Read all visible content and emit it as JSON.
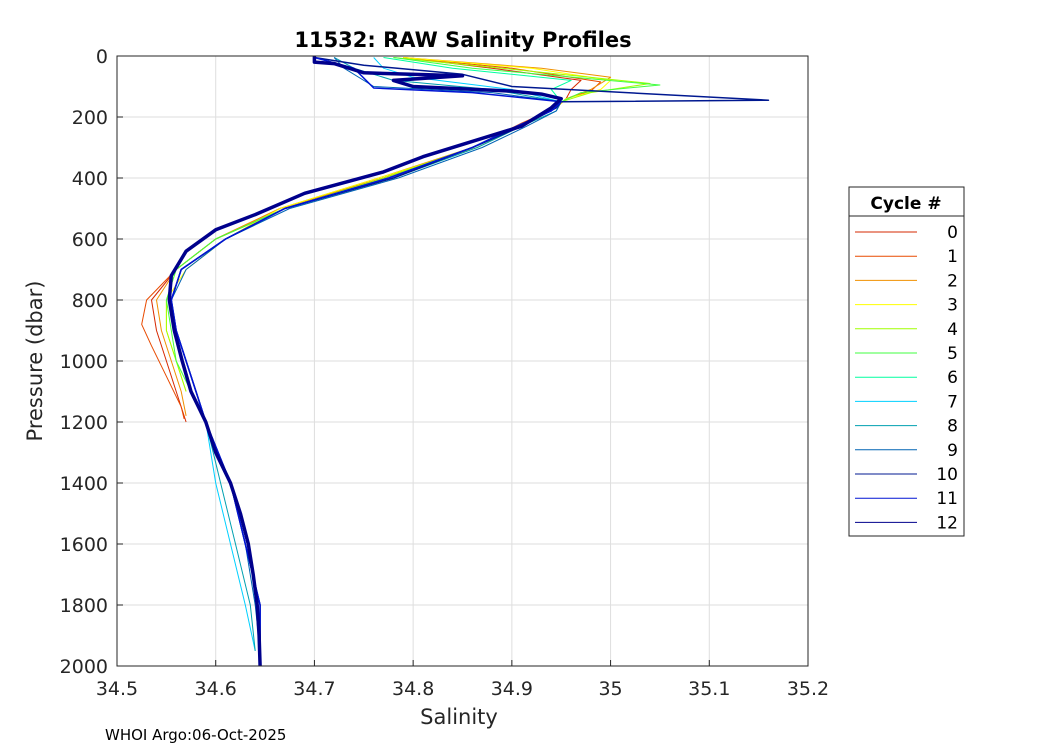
{
  "footer": {
    "text": "WHOI Argo:06-Oct-2025"
  },
  "chart_data": {
    "type": "line",
    "title": "11532: RAW Salinity Profiles",
    "xlabel": "Salinity",
    "ylabel": "Pressure (dbar)",
    "xlim": [
      34.5,
      35.2
    ],
    "ylim": [
      0,
      2000
    ],
    "y_reversed": true,
    "grid": true,
    "xticks": [
      34.5,
      34.6,
      34.7,
      34.8,
      34.9,
      35,
      35.1,
      35.2
    ],
    "xtick_labels": [
      "34.5",
      "34.6",
      "34.7",
      "34.8",
      "34.9",
      "35",
      "35.1",
      "35.2"
    ],
    "yticks": [
      0,
      200,
      400,
      600,
      800,
      1000,
      1200,
      1400,
      1600,
      1800,
      2000
    ],
    "ytick_labels": [
      "0",
      "200",
      "400",
      "600",
      "800",
      "1000",
      "1200",
      "1400",
      "1600",
      "1800",
      "2000"
    ],
    "legend": {
      "title": "Cycle #",
      "placement": "right-outside"
    },
    "series": [
      {
        "name": "0",
        "color": "#d62800",
        "width": 1,
        "pressure": [
          5,
          40,
          80,
          110,
          140,
          170,
          220,
          300,
          400,
          500,
          600,
          700,
          800,
          900,
          1000,
          1100,
          1200
        ],
        "salinity": [
          34.79,
          34.88,
          34.97,
          34.96,
          34.955,
          34.945,
          34.915,
          34.86,
          34.77,
          34.67,
          34.6,
          34.56,
          34.535,
          34.54,
          34.55,
          34.56,
          34.57
        ]
      },
      {
        "name": "1",
        "color": "#e84a00",
        "width": 1,
        "pressure": [
          5,
          40,
          85,
          115,
          140,
          170,
          220,
          300,
          400,
          500,
          600,
          700,
          800,
          880,
          950,
          1050,
          1150,
          1190
        ],
        "salinity": [
          34.79,
          34.9,
          34.99,
          34.98,
          34.955,
          34.945,
          34.91,
          34.86,
          34.77,
          34.665,
          34.6,
          34.56,
          34.53,
          34.525,
          34.535,
          34.55,
          34.565,
          34.568
        ]
      },
      {
        "name": "2",
        "color": "#f09000",
        "width": 1,
        "pressure": [
          5,
          40,
          70,
          110,
          140,
          170,
          220,
          300,
          400,
          500,
          600,
          700,
          800,
          900,
          1000,
          1100,
          1180
        ],
        "salinity": [
          34.79,
          34.93,
          35.0,
          34.98,
          34.955,
          34.945,
          34.915,
          34.86,
          34.765,
          34.665,
          34.6,
          34.56,
          34.54,
          34.545,
          34.555,
          34.565,
          34.57
        ]
      },
      {
        "name": "3",
        "color": "#ffff00",
        "width": 1,
        "pressure": [
          5,
          40,
          80,
          110,
          140,
          170,
          220,
          300,
          400,
          500,
          600,
          700,
          800,
          900,
          1000,
          1100
        ],
        "salinity": [
          34.79,
          34.92,
          35.0,
          34.99,
          34.955,
          34.945,
          34.915,
          34.865,
          34.765,
          34.665,
          34.61,
          34.57,
          34.55,
          34.55,
          34.56,
          34.57
        ]
      },
      {
        "name": "4",
        "color": "#a0ff00",
        "width": 1,
        "pressure": [
          5,
          40,
          90,
          120,
          150,
          180,
          230,
          300,
          400,
          500,
          600,
          700,
          800,
          900,
          1000,
          1100
        ],
        "salinity": [
          34.78,
          34.89,
          35.04,
          34.98,
          34.95,
          34.94,
          34.905,
          34.86,
          34.77,
          34.67,
          34.6,
          34.56,
          34.55,
          34.55,
          34.56,
          34.57
        ]
      },
      {
        "name": "5",
        "color": "#40ff40",
        "width": 1,
        "pressure": [
          5,
          40,
          95,
          120,
          150,
          180,
          230,
          300,
          400,
          500,
          600,
          700,
          800,
          900,
          1000,
          1100
        ],
        "salinity": [
          34.78,
          34.86,
          35.05,
          34.97,
          34.95,
          34.94,
          34.905,
          34.86,
          34.775,
          34.67,
          34.6,
          34.56,
          34.55,
          34.555,
          34.56,
          34.575
        ]
      },
      {
        "name": "6",
        "color": "#00ffa0",
        "width": 1,
        "pressure": [
          5,
          40,
          80,
          110,
          150,
          180,
          230,
          300,
          400,
          500,
          600,
          700,
          800,
          900,
          1000,
          1100,
          1200
        ],
        "salinity": [
          34.77,
          34.84,
          34.96,
          34.94,
          34.95,
          34.94,
          34.905,
          34.86,
          34.775,
          34.67,
          34.61,
          34.565,
          34.555,
          34.56,
          34.57,
          34.58,
          34.59
        ]
      },
      {
        "name": "7",
        "color": "#00d0ff",
        "width": 1,
        "pressure": [
          5,
          40,
          70,
          110,
          150,
          180,
          230,
          300,
          400,
          500,
          600,
          700,
          800,
          900,
          1000,
          1100,
          1200,
          1400,
          1600,
          1800,
          1950
        ],
        "salinity": [
          34.76,
          34.77,
          34.8,
          34.9,
          34.95,
          34.94,
          34.905,
          34.86,
          34.78,
          34.67,
          34.61,
          34.565,
          34.555,
          34.56,
          34.57,
          34.58,
          34.59,
          34.6,
          34.615,
          34.63,
          34.64
        ]
      },
      {
        "name": "8",
        "color": "#00a0b0",
        "width": 1,
        "pressure": [
          5,
          40,
          80,
          110,
          150,
          180,
          230,
          300,
          400,
          500,
          600,
          700,
          800,
          900,
          1000,
          1100,
          1200,
          1400,
          1600,
          1800,
          1950
        ],
        "salinity": [
          34.72,
          34.74,
          34.78,
          34.88,
          34.95,
          34.945,
          34.91,
          34.865,
          34.78,
          34.67,
          34.61,
          34.565,
          34.555,
          34.56,
          34.57,
          34.58,
          34.59,
          34.605,
          34.62,
          34.635,
          34.64
        ]
      },
      {
        "name": "9",
        "color": "#0064b4",
        "width": 1,
        "pressure": [
          5,
          40,
          100,
          120,
          150,
          180,
          230,
          300,
          400,
          500,
          600,
          700,
          800,
          900,
          1000,
          1100,
          1200,
          1400,
          1600,
          1800,
          1950
        ],
        "salinity": [
          34.72,
          34.73,
          34.76,
          34.88,
          34.95,
          34.945,
          34.915,
          34.87,
          34.785,
          34.675,
          34.61,
          34.57,
          34.555,
          34.56,
          34.57,
          34.58,
          34.59,
          34.615,
          34.63,
          34.64,
          34.645
        ]
      },
      {
        "name": "10",
        "color": "#001890",
        "width": 1.5,
        "pressure": [
          5,
          30,
          60,
          100,
          145,
          150,
          170,
          230,
          300,
          400,
          500,
          600,
          700,
          800,
          900,
          1000,
          1100,
          1200,
          1400,
          1600,
          1800,
          1990
        ],
        "salinity": [
          34.7,
          34.75,
          34.85,
          34.9,
          35.16,
          34.95,
          34.945,
          34.91,
          34.86,
          34.78,
          34.67,
          34.61,
          34.565,
          34.555,
          34.56,
          34.57,
          34.58,
          34.59,
          34.615,
          34.63,
          34.645,
          34.645
        ]
      },
      {
        "name": "11",
        "color": "#0014d4",
        "width": 1.5,
        "pressure": [
          5,
          40,
          105,
          120,
          150,
          180,
          230,
          300,
          400,
          500,
          600,
          700,
          800,
          900,
          1000,
          1100,
          1200,
          1400,
          1600,
          1800,
          1990
        ],
        "salinity": [
          34.7,
          34.74,
          34.76,
          34.86,
          34.95,
          34.94,
          34.905,
          34.86,
          34.775,
          34.67,
          34.61,
          34.565,
          34.555,
          34.56,
          34.57,
          34.58,
          34.59,
          34.615,
          34.63,
          34.645,
          34.645
        ]
      },
      {
        "name": "12",
        "color": "#00008c",
        "width": 3.5,
        "pressure": [
          0,
          20,
          25,
          55,
          65,
          80,
          100,
          115,
          125,
          140,
          170,
          230,
          290,
          330,
          380,
          450,
          520,
          570,
          640,
          720,
          800,
          900,
          1000,
          1100,
          1200,
          1300,
          1400,
          1500,
          1600,
          1700,
          1800,
          1900,
          2000
        ],
        "salinity": [
          34.7,
          34.7,
          34.72,
          34.75,
          34.85,
          34.78,
          34.8,
          34.9,
          34.93,
          34.95,
          34.94,
          34.91,
          34.85,
          34.81,
          34.77,
          34.69,
          34.64,
          34.6,
          34.57,
          34.555,
          34.553,
          34.558,
          34.566,
          34.575,
          34.59,
          34.6,
          34.615,
          34.625,
          34.633,
          34.638,
          34.642,
          34.644,
          34.645
        ]
      }
    ]
  }
}
